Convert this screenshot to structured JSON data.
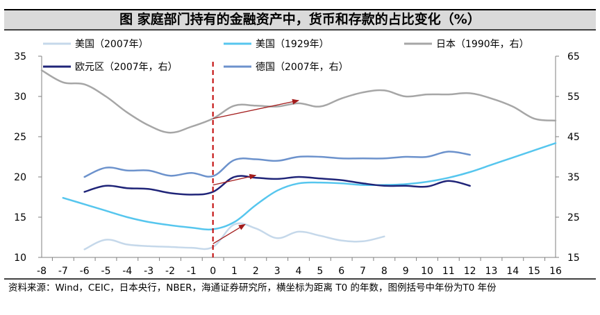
{
  "title": "图  家庭部门持有的金融资产中，货币和存款的占比变化（%）",
  "source_note": "资料来源：Wind，CEIC，日本央行，NBER，海通证券研究所，横坐标为距离 T0 的年数，图例括号中年份为T0 年份",
  "chart_data": {
    "type": "line",
    "x_ticks": [
      -8,
      -7,
      -6,
      -5,
      -4,
      -3,
      -2,
      -1,
      0,
      1,
      2,
      3,
      4,
      5,
      6,
      7,
      8,
      9,
      10,
      11,
      12,
      13,
      14,
      15,
      16
    ],
    "xlim": [
      -8,
      16
    ],
    "left_axis": {
      "ylim": [
        10,
        35
      ],
      "ticks": [
        10,
        15,
        20,
        25,
        30,
        35
      ]
    },
    "right_axis": {
      "ylim": [
        15,
        65
      ],
      "ticks": [
        15,
        25,
        35,
        45,
        55,
        65
      ]
    },
    "grid": false,
    "series": [
      {
        "name": "美国（2007年）",
        "axis": "left",
        "color": "#c5d8ea",
        "x": [
          -6,
          -5,
          -4,
          -3,
          -2,
          -1,
          0,
          1,
          2,
          3,
          4,
          5,
          6,
          7,
          8
        ],
        "y": [
          11.0,
          12.2,
          11.6,
          11.4,
          11.3,
          11.2,
          11.3,
          14.1,
          13.6,
          12.4,
          13.2,
          12.7,
          12.1,
          12.0,
          12.6
        ]
      },
      {
        "name": "美国（1929年）",
        "axis": "left",
        "color": "#56c6ee",
        "x": [
          -7,
          -6,
          -5,
          -4,
          -3,
          -2,
          -1,
          0,
          1,
          2,
          3,
          4,
          5,
          6,
          7,
          8,
          9,
          10,
          11,
          12,
          13,
          14,
          15,
          16
        ],
        "y": [
          17.4,
          16.6,
          15.8,
          15.0,
          14.4,
          14.0,
          13.7,
          13.5,
          14.4,
          16.5,
          18.3,
          19.2,
          19.3,
          19.2,
          19.0,
          19.0,
          19.1,
          19.4,
          19.9,
          20.6,
          21.5,
          22.4,
          23.3,
          24.2
        ]
      },
      {
        "name": "日本（1990年，右）",
        "axis": "right",
        "color": "#a6a6a6",
        "x": [
          -8,
          -7,
          -6,
          -5,
          -4,
          -3,
          -2,
          -1,
          0,
          1,
          2,
          3,
          4,
          5,
          6,
          7,
          8,
          9,
          10,
          11,
          12,
          13,
          14,
          15,
          16
        ],
        "y": [
          61.5,
          58.5,
          58.0,
          55.0,
          51.0,
          47.8,
          46.0,
          47.5,
          49.5,
          52.7,
          52.7,
          52.5,
          53.3,
          52.5,
          54.5,
          56.0,
          56.5,
          55.0,
          55.5,
          55.5,
          55.8,
          54.5,
          52.5,
          49.5,
          49.0
        ]
      },
      {
        "name": "欧元区（2007年，右）",
        "axis": "right",
        "color": "#1f2478",
        "x": [
          -6,
          -5,
          -4,
          -3,
          -2,
          -1,
          0,
          1,
          2,
          3,
          4,
          5,
          6,
          7,
          8,
          9,
          10,
          11,
          12
        ],
        "y": [
          31.3,
          32.8,
          32.2,
          32.0,
          31.0,
          30.6,
          31.3,
          35.0,
          34.8,
          34.5,
          35.0,
          34.6,
          34.2,
          33.4,
          32.8,
          32.8,
          32.6,
          34.0,
          32.8
        ]
      },
      {
        "name": "德国（2007年，右）",
        "axis": "right",
        "color": "#6c92cc",
        "x": [
          -6,
          -5,
          -4,
          -3,
          -2,
          -1,
          0,
          1,
          2,
          3,
          4,
          5,
          6,
          7,
          8,
          9,
          10,
          11,
          12
        ],
        "y": [
          35.0,
          37.3,
          36.6,
          36.6,
          35.3,
          36.0,
          35.2,
          39.2,
          39.4,
          39.0,
          40.0,
          40.0,
          39.6,
          39.6,
          39.6,
          40.0,
          40.0,
          41.3,
          40.5
        ]
      }
    ],
    "legend": {
      "placement": "top",
      "items": [
        {
          "label": "美国（2007年）",
          "color": "#c5d8ea"
        },
        {
          "label": "美国（1929年）",
          "color": "#56c6ee"
        },
        {
          "label": "日本（1990年，右）",
          "color": "#a6a6a6"
        },
        {
          "label": "欧元区（2007年，右）",
          "color": "#1f2478"
        },
        {
          "label": "德国（2007年，右）",
          "color": "#6c92cc"
        }
      ]
    },
    "reference_line": {
      "x": 0,
      "color": "#c00000",
      "style": "dashed"
    },
    "annotation_arrows": [
      {
        "axis": "right",
        "from": [
          0,
          49.5
        ],
        "to": [
          4,
          54.0
        ]
      },
      {
        "axis": "left",
        "from": [
          0,
          19.0
        ],
        "to": [
          2,
          20.2
        ]
      },
      {
        "axis": "left",
        "from": [
          0,
          11.7
        ],
        "to": [
          1.5,
          14.1
        ]
      }
    ],
    "arrow_color": "#a31c1c"
  }
}
